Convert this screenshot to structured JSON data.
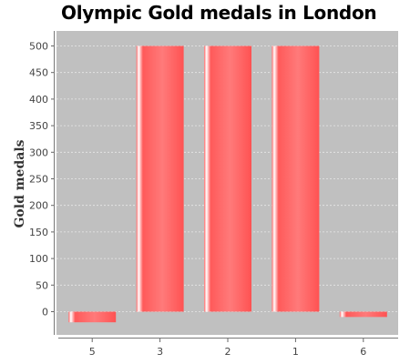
{
  "chart_data": {
    "type": "bar",
    "title": "Olympic Gold medals in London",
    "xlabel": "",
    "ylabel": "Gold medals",
    "categories": [
      "5",
      "3",
      "2",
      "1",
      "6"
    ],
    "values": [
      -20,
      500,
      500,
      500,
      -10
    ],
    "ylim": [
      -45,
      520
    ],
    "yticks": [
      0,
      50,
      100,
      150,
      200,
      250,
      300,
      350,
      400,
      450,
      500
    ],
    "grid": true,
    "legend": "none",
    "colors": {
      "plot_background": "#c0c0c0",
      "bar": "#ff5a5a",
      "gridline": "#e8e8e8"
    }
  }
}
